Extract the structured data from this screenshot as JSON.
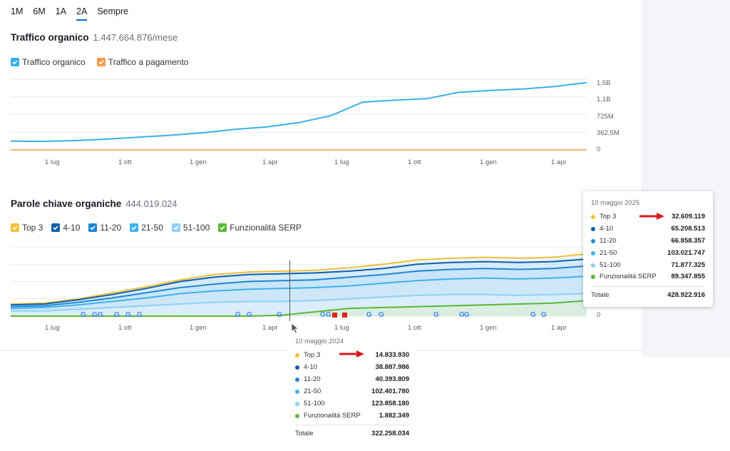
{
  "period_tabs": [
    "1M",
    "6M",
    "1A",
    "2A",
    "Sempre"
  ],
  "active_period": "2A",
  "traffic": {
    "title": "Traffico organico",
    "value": "1.447.664.876/mese",
    "legend": [
      {
        "label": "Traffico organico",
        "color": "#3ab0e8",
        "checked": true
      },
      {
        "label": "Traffico a pagamento",
        "color": "#f29a4a",
        "checked": true
      }
    ]
  },
  "keywords": {
    "title": "Parole chiave organiche",
    "value": "444.019.024",
    "legend": [
      {
        "label": "Top 3",
        "color": "#f2c037"
      },
      {
        "label": "4-10",
        "color": "#0f5fab"
      },
      {
        "label": "11-20",
        "color": "#1f86d6"
      },
      {
        "label": "21-50",
        "color": "#3fb2ea"
      },
      {
        "label": "51-100",
        "color": "#8fd0f2"
      },
      {
        "label": "Funzionalità SERP",
        "color": "#5bb834"
      }
    ]
  },
  "x_ticks": [
    "1 lug",
    "1 ott",
    "1 gen",
    "1 apr",
    "1 lug",
    "1 ott",
    "1 gen",
    "1 apr"
  ],
  "x_ticks_2": [
    "1 lug",
    "1 ott",
    "1 gen",
    "1 apr",
    "1 lug",
    "1 ott",
    "1 gen",
    "1 apr"
  ],
  "chart_data": [
    {
      "type": "line",
      "title": "Traffico organico",
      "ylabel_ticks": [
        "1,5B",
        "1,1B",
        "725M",
        "362,5M",
        "0"
      ],
      "ylim": [
        0,
        1450000000
      ],
      "series": [
        {
          "name": "Traffico organico",
          "values": [
            180000000,
            175000000,
            190000000,
            220000000,
            260000000,
            300000000,
            350000000,
            420000000,
            470000000,
            560000000,
            700000000,
            980000000,
            1020000000,
            1050000000,
            1180000000,
            1220000000,
            1250000000,
            1300000000,
            1380000000
          ]
        },
        {
          "name": "Traffico a pagamento",
          "values": [
            0,
            0,
            0,
            0,
            0,
            0,
            0,
            0,
            0,
            0,
            0,
            0,
            0,
            0,
            0,
            0,
            0,
            0,
            0
          ]
        }
      ]
    },
    {
      "type": "area",
      "title": "Parole chiave organiche",
      "ylabel_ticks": [
        "0"
      ],
      "series": [
        {
          "name": "Top 3",
          "values": [
            14,
            15,
            20,
            27,
            34,
            42,
            48,
            51,
            52,
            53,
            56,
            60,
            65,
            67,
            68,
            67,
            68,
            72
          ]
        },
        {
          "name": "4-10",
          "values": [
            13,
            14,
            19,
            25,
            32,
            40,
            45,
            48,
            49,
            50,
            52,
            55,
            60,
            62,
            63,
            62,
            63,
            66
          ]
        },
        {
          "name": "11-20",
          "values": [
            11,
            12,
            16,
            21,
            27,
            33,
            37,
            40,
            41,
            42,
            45,
            48,
            52,
            54,
            55,
            54,
            55,
            58
          ]
        },
        {
          "name": "21-50",
          "values": [
            9,
            10,
            13,
            17,
            21,
            26,
            29,
            31,
            32,
            33,
            35,
            38,
            41,
            43,
            44,
            43,
            44,
            46
          ]
        },
        {
          "name": "51-100",
          "values": [
            6,
            6,
            8,
            10,
            12,
            14,
            16,
            17,
            17,
            18,
            20,
            22,
            24,
            25,
            25,
            24,
            25,
            26
          ]
        },
        {
          "name": "Funzionalità SERP",
          "values": [
            0,
            0,
            0,
            0,
            0,
            0,
            0,
            0,
            1,
            5,
            9,
            10,
            11,
            12,
            13,
            14,
            15,
            18
          ]
        }
      ]
    }
  ],
  "tooltip_2025": {
    "date": "10 maggio 2025",
    "rows": [
      {
        "label": "Top 3",
        "value": "32.609.119",
        "color": "#f2c037"
      },
      {
        "label": "4-10",
        "value": "65.208.513",
        "color": "#0f5fab"
      },
      {
        "label": "11-20",
        "value": "66.858.357",
        "color": "#1f86d6"
      },
      {
        "label": "21-50",
        "value": "103.021.747",
        "color": "#3fb2ea"
      },
      {
        "label": "51-100",
        "value": "71.877.325",
        "color": "#8fd0f2"
      },
      {
        "label": "Funzionalità SERP",
        "value": "89.347.855",
        "color": "#5bb834"
      }
    ],
    "total_label": "Totale",
    "total_value": "428.922.916"
  },
  "tooltip_2024": {
    "date": "10 maggio 2024",
    "rows": [
      {
        "label": "Top 3",
        "value": "14.833.930",
        "color": "#f2c037"
      },
      {
        "label": "4-10",
        "value": "38.887.986",
        "color": "#0f5fab"
      },
      {
        "label": "11-20",
        "value": "40.393.809",
        "color": "#1f86d6"
      },
      {
        "label": "21-50",
        "value": "102.401.780",
        "color": "#3fb2ea"
      },
      {
        "label": "51-100",
        "value": "123.858.180",
        "color": "#8fd0f2"
      },
      {
        "label": "Funzionalità SERP",
        "value": "1.882.349",
        "color": "#5bb834"
      }
    ],
    "total_label": "Totale",
    "total_value": "322.258.034"
  },
  "serp_marker_glyph": "G"
}
